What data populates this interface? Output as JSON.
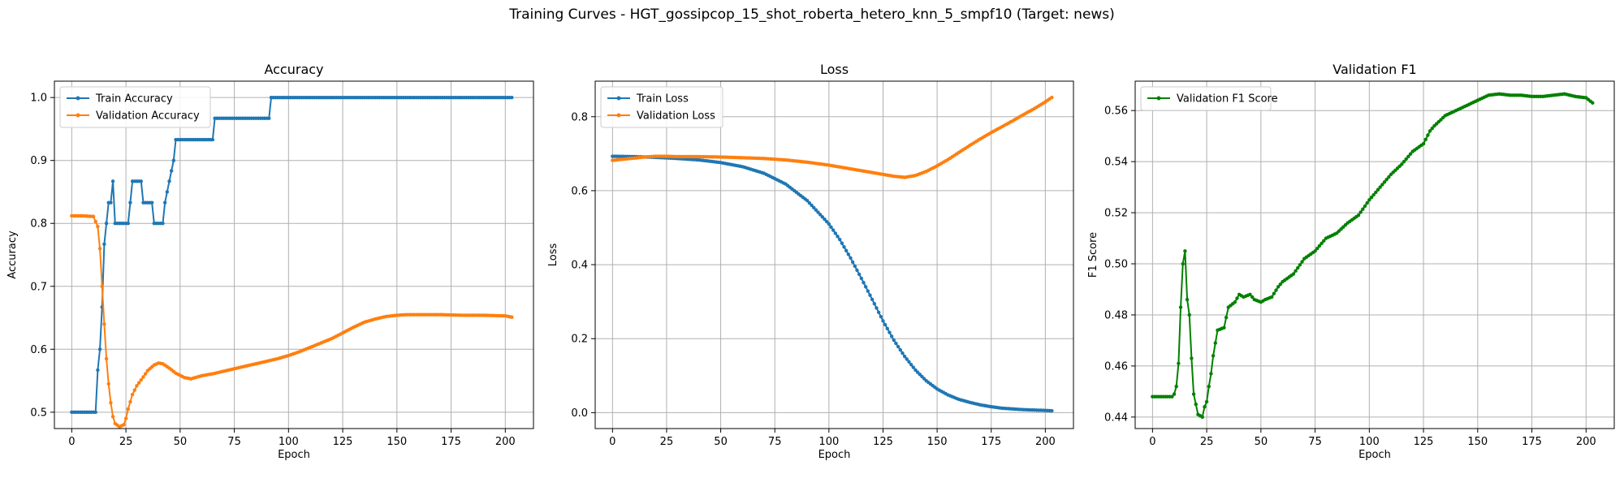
{
  "figure": {
    "suptitle": "Training Curves - HGT_gossipcop_15_shot_roberta_hetero_knn_5_smpf10 (Target: news)"
  },
  "colors": {
    "blue": "#1f77b4",
    "orange": "#ff7f0e",
    "green": "#008000",
    "grid": "#b0b0b0"
  },
  "chart_data": [
    {
      "type": "line",
      "title": "Accuracy",
      "xlabel": "Epoch",
      "ylabel": "Accuracy",
      "xlim": [
        -8,
        213
      ],
      "ylim": [
        0.474,
        1.026
      ],
      "xticks": [
        0,
        25,
        50,
        75,
        100,
        125,
        150,
        175,
        200
      ],
      "yticks": [
        0.5,
        0.6,
        0.7,
        0.8,
        0.9,
        1.0
      ],
      "grid": true,
      "legend": "upper left",
      "series": [
        {
          "name": "Train Accuracy",
          "color": "#1f77b4",
          "points": [
            [
              0,
              0.5
            ],
            [
              11,
              0.5
            ],
            [
              12,
              0.567
            ],
            [
              13,
              0.6
            ],
            [
              14,
              0.667
            ],
            [
              15,
              0.767
            ],
            [
              16,
              0.8
            ],
            [
              17,
              0.833
            ],
            [
              18,
              0.833
            ],
            [
              19,
              0.867
            ],
            [
              20,
              0.8
            ],
            [
              26,
              0.8
            ],
            [
              27,
              0.833
            ],
            [
              28,
              0.867
            ],
            [
              32,
              0.867
            ],
            [
              33,
              0.833
            ],
            [
              37,
              0.833
            ],
            [
              38,
              0.8
            ],
            [
              42,
              0.8
            ],
            [
              43,
              0.833
            ],
            [
              45,
              0.867
            ],
            [
              47,
              0.9
            ],
            [
              48,
              0.933
            ],
            [
              65,
              0.933
            ],
            [
              66,
              0.967
            ],
            [
              91,
              0.967
            ],
            [
              92,
              1.0
            ],
            [
              203,
              1.0
            ]
          ]
        },
        {
          "name": "Validation Accuracy",
          "color": "#ff7f0e",
          "points": [
            [
              0,
              0.812
            ],
            [
              5,
              0.812
            ],
            [
              10,
              0.811
            ],
            [
              12,
              0.795
            ],
            [
              13,
              0.76
            ],
            [
              14,
              0.7
            ],
            [
              15,
              0.64
            ],
            [
              16,
              0.585
            ],
            [
              17,
              0.545
            ],
            [
              18,
              0.515
            ],
            [
              19,
              0.493
            ],
            [
              20,
              0.482
            ],
            [
              22,
              0.477
            ],
            [
              24,
              0.48
            ],
            [
              25,
              0.49
            ],
            [
              26,
              0.505
            ],
            [
              28,
              0.528
            ],
            [
              30,
              0.542
            ],
            [
              33,
              0.556
            ],
            [
              35,
              0.566
            ],
            [
              38,
              0.575
            ],
            [
              40,
              0.578
            ],
            [
              42,
              0.577
            ],
            [
              45,
              0.57
            ],
            [
              48,
              0.562
            ],
            [
              52,
              0.555
            ],
            [
              55,
              0.553
            ],
            [
              60,
              0.558
            ],
            [
              65,
              0.561
            ],
            [
              70,
              0.565
            ],
            [
              75,
              0.569
            ],
            [
              80,
              0.573
            ],
            [
              85,
              0.577
            ],
            [
              90,
              0.581
            ],
            [
              95,
              0.585
            ],
            [
              100,
              0.59
            ],
            [
              105,
              0.596
            ],
            [
              110,
              0.603
            ],
            [
              115,
              0.61
            ],
            [
              120,
              0.617
            ],
            [
              125,
              0.626
            ],
            [
              130,
              0.635
            ],
            [
              135,
              0.643
            ],
            [
              140,
              0.648
            ],
            [
              145,
              0.652
            ],
            [
              150,
              0.654
            ],
            [
              155,
              0.655
            ],
            [
              160,
              0.655
            ],
            [
              170,
              0.655
            ],
            [
              180,
              0.654
            ],
            [
              190,
              0.654
            ],
            [
              200,
              0.653
            ],
            [
              203,
              0.651
            ]
          ]
        }
      ]
    },
    {
      "type": "line",
      "title": "Loss",
      "xlabel": "Epoch",
      "ylabel": "Loss",
      "xlim": [
        -8,
        213
      ],
      "ylim": [
        -0.043,
        0.896
      ],
      "xticks": [
        0,
        25,
        50,
        75,
        100,
        125,
        150,
        175,
        200
      ],
      "yticks": [
        0.0,
        0.2,
        0.4,
        0.6,
        0.8
      ],
      "grid": true,
      "legend": "upper left",
      "series": [
        {
          "name": "Train Loss",
          "color": "#1f77b4",
          "points": [
            [
              0,
              0.693
            ],
            [
              10,
              0.692
            ],
            [
              20,
              0.69
            ],
            [
              30,
              0.687
            ],
            [
              40,
              0.683
            ],
            [
              50,
              0.676
            ],
            [
              60,
              0.665
            ],
            [
              70,
              0.647
            ],
            [
              80,
              0.618
            ],
            [
              90,
              0.573
            ],
            [
              100,
              0.51
            ],
            [
              105,
              0.468
            ],
            [
              110,
              0.418
            ],
            [
              115,
              0.363
            ],
            [
              120,
              0.306
            ],
            [
              125,
              0.248
            ],
            [
              130,
              0.196
            ],
            [
              135,
              0.152
            ],
            [
              140,
              0.115
            ],
            [
              145,
              0.086
            ],
            [
              150,
              0.064
            ],
            [
              155,
              0.048
            ],
            [
              160,
              0.036
            ],
            [
              165,
              0.028
            ],
            [
              170,
              0.021
            ],
            [
              175,
              0.016
            ],
            [
              180,
              0.012
            ],
            [
              185,
              0.01
            ],
            [
              190,
              0.008
            ],
            [
              195,
              0.007
            ],
            [
              200,
              0.006
            ],
            [
              203,
              0.005
            ]
          ]
        },
        {
          "name": "Validation Loss",
          "color": "#ff7f0e",
          "points": [
            [
              0,
              0.682
            ],
            [
              5,
              0.685
            ],
            [
              10,
              0.688
            ],
            [
              15,
              0.691
            ],
            [
              20,
              0.693
            ],
            [
              25,
              0.693
            ],
            [
              30,
              0.692
            ],
            [
              40,
              0.692
            ],
            [
              50,
              0.691
            ],
            [
              60,
              0.689
            ],
            [
              70,
              0.687
            ],
            [
              80,
              0.683
            ],
            [
              90,
              0.677
            ],
            [
              100,
              0.669
            ],
            [
              110,
              0.659
            ],
            [
              120,
              0.649
            ],
            [
              125,
              0.644
            ],
            [
              130,
              0.639
            ],
            [
              135,
              0.636
            ],
            [
              140,
              0.641
            ],
            [
              145,
              0.652
            ],
            [
              150,
              0.667
            ],
            [
              155,
              0.684
            ],
            [
              160,
              0.703
            ],
            [
              165,
              0.722
            ],
            [
              170,
              0.74
            ],
            [
              175,
              0.757
            ],
            [
              180,
              0.773
            ],
            [
              185,
              0.789
            ],
            [
              190,
              0.806
            ],
            [
              195,
              0.822
            ],
            [
              200,
              0.84
            ],
            [
              203,
              0.852
            ]
          ]
        }
      ]
    },
    {
      "type": "line",
      "title": "Validation F1",
      "xlabel": "Epoch",
      "ylabel": "F1 Score",
      "xlim": [
        -8,
        213
      ],
      "ylim": [
        0.4355,
        0.5715
      ],
      "xticks": [
        0,
        25,
        50,
        75,
        100,
        125,
        150,
        175,
        200
      ],
      "yticks": [
        0.44,
        0.46,
        0.48,
        0.5,
        0.52,
        0.54,
        0.56
      ],
      "grid": true,
      "legend": "upper left",
      "series": [
        {
          "name": "Validation F1 Score",
          "color": "#008000",
          "points": [
            [
              0,
              0.448
            ],
            [
              9,
              0.448
            ],
            [
              10,
              0.449
            ],
            [
              11,
              0.452
            ],
            [
              12,
              0.461
            ],
            [
              13,
              0.483
            ],
            [
              14,
              0.5
            ],
            [
              15,
              0.505
            ],
            [
              16,
              0.486
            ],
            [
              17,
              0.48
            ],
            [
              18,
              0.463
            ],
            [
              19,
              0.449
            ],
            [
              20,
              0.445
            ],
            [
              21,
              0.441
            ],
            [
              23,
              0.44
            ],
            [
              24,
              0.444
            ],
            [
              25,
              0.446
            ],
            [
              26,
              0.452
            ],
            [
              27,
              0.457
            ],
            [
              28,
              0.464
            ],
            [
              29,
              0.469
            ],
            [
              30,
              0.474
            ],
            [
              33,
              0.475
            ],
            [
              35,
              0.483
            ],
            [
              38,
              0.485
            ],
            [
              40,
              0.488
            ],
            [
              42,
              0.487
            ],
            [
              45,
              0.488
            ],
            [
              47,
              0.486
            ],
            [
              50,
              0.485
            ],
            [
              52,
              0.486
            ],
            [
              55,
              0.487
            ],
            [
              58,
              0.491
            ],
            [
              60,
              0.493
            ],
            [
              65,
              0.496
            ],
            [
              70,
              0.502
            ],
            [
              75,
              0.505
            ],
            [
              80,
              0.51
            ],
            [
              85,
              0.512
            ],
            [
              90,
              0.516
            ],
            [
              95,
              0.519
            ],
            [
              100,
              0.525
            ],
            [
              105,
              0.53
            ],
            [
              110,
              0.535
            ],
            [
              115,
              0.539
            ],
            [
              120,
              0.544
            ],
            [
              125,
              0.547
            ],
            [
              128,
              0.552
            ],
            [
              130,
              0.554
            ],
            [
              135,
              0.558
            ],
            [
              140,
              0.56
            ],
            [
              145,
              0.562
            ],
            [
              150,
              0.564
            ],
            [
              155,
              0.566
            ],
            [
              160,
              0.5665
            ],
            [
              165,
              0.566
            ],
            [
              170,
              0.566
            ],
            [
              175,
              0.5655
            ],
            [
              180,
              0.5655
            ],
            [
              185,
              0.566
            ],
            [
              190,
              0.5665
            ],
            [
              195,
              0.5655
            ],
            [
              200,
              0.565
            ],
            [
              203,
              0.563
            ]
          ]
        }
      ]
    }
  ]
}
